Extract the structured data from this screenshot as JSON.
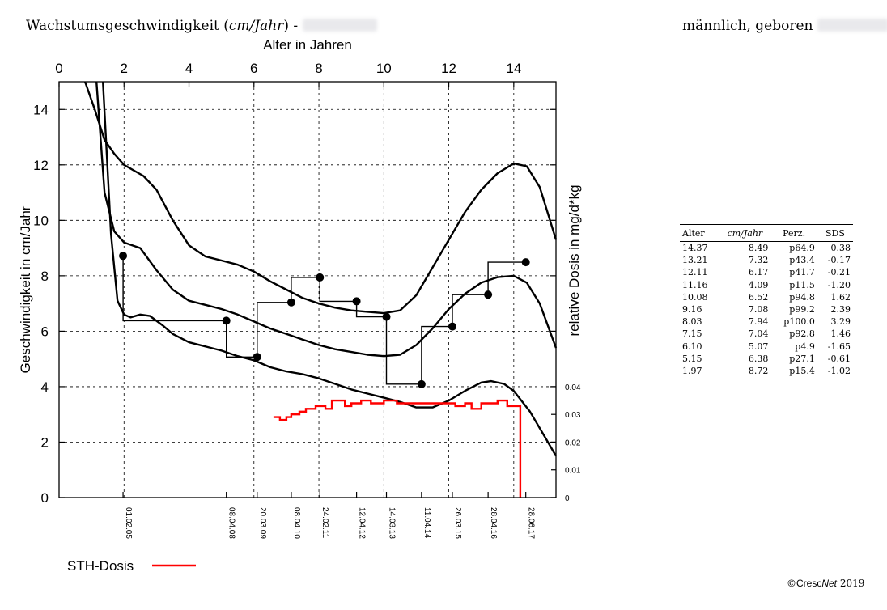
{
  "header": {
    "title_prefix": "Wachstumsgeschwindigkeit (",
    "title_unit": "cm/Jahr",
    "title_suffix": ") - ",
    "sex_born": "männlich, geboren"
  },
  "legend": {
    "label": "STH-Dosis",
    "color": "#ff0000"
  },
  "footer": {
    "copyright_symbol": "©",
    "brand": "Cresc",
    "brand_it": "Net",
    "year": "2019"
  },
  "table": {
    "columns": [
      "Alter",
      "cm/Jahr",
      "Perz.",
      "SDS"
    ],
    "rows": [
      [
        "14.37",
        "8.49",
        "p64.9",
        "0.38"
      ],
      [
        "13.21",
        "7.32",
        "p43.4",
        "-0.17"
      ],
      [
        "12.11",
        "6.17",
        "p41.7",
        "-0.21"
      ],
      [
        "11.16",
        "4.09",
        "p11.5",
        "-1.20"
      ],
      [
        "10.08",
        "6.52",
        "p94.8",
        "1.62"
      ],
      [
        "9.16",
        "7.08",
        "p99.2",
        "2.39"
      ],
      [
        "8.03",
        "7.94",
        "p100.0",
        "3.29"
      ],
      [
        "7.15",
        "7.04",
        "p92.8",
        "1.46"
      ],
      [
        "6.10",
        "5.07",
        "p4.9",
        "-1.65"
      ],
      [
        "5.15",
        "6.38",
        "p27.1",
        "-0.61"
      ],
      [
        "1.97",
        "8.72",
        "p15.4",
        "-1.02"
      ]
    ]
  },
  "chart_data": {
    "type": "line",
    "xlabel": "Alter in Jahren",
    "ylabel": "Geschwindigkeit in cm/Jahr",
    "y2label": "relative Dosis in mg/d*kg",
    "xlim": [
      0,
      15.3
    ],
    "ylim": [
      0,
      15
    ],
    "y2lim": [
      0,
      0.04
    ],
    "x_ticks": [
      0,
      2,
      4,
      6,
      8,
      10,
      12,
      14
    ],
    "y_ticks": [
      0,
      2,
      4,
      6,
      8,
      10,
      12,
      14
    ],
    "y2_ticks": [
      "0",
      "0.01",
      "0.02",
      "0.03",
      "0.04"
    ],
    "grid": true,
    "date_ticks": [
      {
        "x": 1.97,
        "label": "01.02.05"
      },
      {
        "x": 5.15,
        "label": "08.04.08"
      },
      {
        "x": 6.1,
        "label": "20.03.09"
      },
      {
        "x": 7.15,
        "label": "08.04.10"
      },
      {
        "x": 8.03,
        "label": "24.02.11"
      },
      {
        "x": 9.16,
        "label": "12.04.12"
      },
      {
        "x": 10.08,
        "label": "14.03.13"
      },
      {
        "x": 11.16,
        "label": "11.04.14"
      },
      {
        "x": 12.11,
        "label": "26.03.15"
      },
      {
        "x": 13.21,
        "label": "28.04.16"
      },
      {
        "x": 14.37,
        "label": "28.06.17"
      }
    ],
    "percentile_curves": [
      {
        "points": [
          [
            0.8,
            15
          ],
          [
            1.1,
            14
          ],
          [
            1.4,
            12.9
          ],
          [
            1.7,
            12.4
          ],
          [
            2.0,
            12.0
          ],
          [
            2.6,
            11.6
          ],
          [
            3.0,
            11.1
          ],
          [
            3.5,
            10.0
          ],
          [
            4.0,
            9.1
          ],
          [
            4.5,
            8.7
          ],
          [
            5.0,
            8.55
          ],
          [
            5.5,
            8.4
          ],
          [
            6.0,
            8.15
          ],
          [
            6.5,
            7.8
          ],
          [
            7.0,
            7.5
          ],
          [
            7.5,
            7.2
          ],
          [
            8.0,
            7.0
          ],
          [
            8.5,
            6.85
          ],
          [
            9.0,
            6.75
          ],
          [
            9.5,
            6.7
          ],
          [
            10.0,
            6.65
          ],
          [
            10.5,
            6.75
          ],
          [
            11.0,
            7.3
          ],
          [
            11.5,
            8.3
          ],
          [
            12.0,
            9.3
          ],
          [
            12.5,
            10.3
          ],
          [
            13.0,
            11.1
          ],
          [
            13.5,
            11.7
          ],
          [
            14.0,
            12.05
          ],
          [
            14.4,
            11.95
          ],
          [
            14.8,
            11.2
          ],
          [
            15.3,
            9.3
          ]
        ]
      },
      {
        "points": [
          [
            1.15,
            15
          ],
          [
            1.4,
            11.0
          ],
          [
            1.7,
            9.6
          ],
          [
            2.0,
            9.2
          ],
          [
            2.5,
            9.0
          ],
          [
            3.0,
            8.2
          ],
          [
            3.5,
            7.5
          ],
          [
            4.0,
            7.1
          ],
          [
            4.5,
            6.95
          ],
          [
            5.0,
            6.8
          ],
          [
            5.5,
            6.6
          ],
          [
            6.0,
            6.35
          ],
          [
            6.5,
            6.1
          ],
          [
            7.0,
            5.9
          ],
          [
            7.5,
            5.7
          ],
          [
            8.0,
            5.5
          ],
          [
            8.5,
            5.35
          ],
          [
            9.0,
            5.25
          ],
          [
            9.5,
            5.15
          ],
          [
            10.0,
            5.1
          ],
          [
            10.5,
            5.15
          ],
          [
            11.0,
            5.5
          ],
          [
            11.5,
            6.1
          ],
          [
            12.0,
            6.8
          ],
          [
            12.5,
            7.35
          ],
          [
            13.0,
            7.75
          ],
          [
            13.5,
            7.95
          ],
          [
            14.0,
            8.0
          ],
          [
            14.4,
            7.75
          ],
          [
            14.8,
            7.0
          ],
          [
            15.3,
            5.4
          ]
        ]
      },
      {
        "points": [
          [
            1.35,
            15
          ],
          [
            1.6,
            9.5
          ],
          [
            1.8,
            7.1
          ],
          [
            2.0,
            6.6
          ],
          [
            2.2,
            6.5
          ],
          [
            2.5,
            6.6
          ],
          [
            2.8,
            6.55
          ],
          [
            3.2,
            6.2
          ],
          [
            3.5,
            5.9
          ],
          [
            4.0,
            5.6
          ],
          [
            4.5,
            5.45
          ],
          [
            5.0,
            5.3
          ],
          [
            5.5,
            5.1
          ],
          [
            6.0,
            4.95
          ],
          [
            6.5,
            4.7
          ],
          [
            7.0,
            4.55
          ],
          [
            7.5,
            4.45
          ],
          [
            8.0,
            4.3
          ],
          [
            8.5,
            4.1
          ],
          [
            9.0,
            3.9
          ],
          [
            9.5,
            3.75
          ],
          [
            10.0,
            3.6
          ],
          [
            10.5,
            3.45
          ],
          [
            11.0,
            3.25
          ],
          [
            11.5,
            3.25
          ],
          [
            12.0,
            3.5
          ],
          [
            12.5,
            3.85
          ],
          [
            13.0,
            4.15
          ],
          [
            13.3,
            4.2
          ],
          [
            13.7,
            4.1
          ],
          [
            14.0,
            3.85
          ],
          [
            14.5,
            3.1
          ],
          [
            15.0,
            2.1
          ],
          [
            15.3,
            1.5
          ]
        ]
      }
    ],
    "measured_points": [
      [
        1.97,
        8.72
      ],
      [
        5.15,
        6.38
      ],
      [
        6.1,
        5.07
      ],
      [
        7.15,
        7.04
      ],
      [
        8.03,
        7.94
      ],
      [
        9.16,
        7.08
      ],
      [
        10.08,
        6.52
      ],
      [
        11.16,
        4.09
      ],
      [
        12.11,
        6.17
      ],
      [
        13.21,
        7.32
      ],
      [
        14.37,
        8.49
      ]
    ],
    "measured_steps": [
      {
        "from": 1.97,
        "to": 5.15,
        "y": 6.38
      },
      {
        "from": 5.15,
        "to": 6.1,
        "y": 5.07
      },
      {
        "from": 6.1,
        "to": 7.15,
        "y": 7.04
      },
      {
        "from": 7.15,
        "to": 8.03,
        "y": 7.94
      },
      {
        "from": 8.03,
        "to": 9.16,
        "y": 7.08
      },
      {
        "from": 9.16,
        "to": 10.08,
        "y": 6.52
      },
      {
        "from": 10.08,
        "to": 11.16,
        "y": 4.09
      },
      {
        "from": 11.16,
        "to": 12.11,
        "y": 6.17
      },
      {
        "from": 12.11,
        "to": 13.21,
        "y": 7.32
      },
      {
        "from": 13.21,
        "to": 14.37,
        "y": 8.49
      }
    ],
    "dose_series": {
      "name": "STH-Dosis",
      "axis": "y2",
      "points": [
        [
          6.6,
          0.029
        ],
        [
          6.8,
          0.029
        ],
        [
          6.8,
          0.028
        ],
        [
          7.0,
          0.028
        ],
        [
          7.0,
          0.029
        ],
        [
          7.15,
          0.029
        ],
        [
          7.15,
          0.03
        ],
        [
          7.4,
          0.03
        ],
        [
          7.4,
          0.031
        ],
        [
          7.6,
          0.031
        ],
        [
          7.6,
          0.032
        ],
        [
          7.9,
          0.032
        ],
        [
          7.9,
          0.033
        ],
        [
          8.2,
          0.033
        ],
        [
          8.2,
          0.032
        ],
        [
          8.4,
          0.032
        ],
        [
          8.4,
          0.035
        ],
        [
          8.8,
          0.035
        ],
        [
          8.8,
          0.033
        ],
        [
          9.0,
          0.033
        ],
        [
          9.0,
          0.034
        ],
        [
          9.3,
          0.034
        ],
        [
          9.3,
          0.035
        ],
        [
          9.6,
          0.035
        ],
        [
          9.6,
          0.034
        ],
        [
          10.0,
          0.034
        ],
        [
          10.0,
          0.035
        ],
        [
          10.4,
          0.035
        ],
        [
          10.4,
          0.034
        ],
        [
          10.7,
          0.034
        ],
        [
          10.7,
          0.034
        ],
        [
          12.2,
          0.034
        ],
        [
          12.2,
          0.033
        ],
        [
          12.5,
          0.033
        ],
        [
          12.5,
          0.034
        ],
        [
          12.7,
          0.034
        ],
        [
          12.7,
          0.032
        ],
        [
          13.0,
          0.032
        ],
        [
          13.0,
          0.034
        ],
        [
          13.5,
          0.034
        ],
        [
          13.5,
          0.035
        ],
        [
          13.8,
          0.035
        ],
        [
          13.8,
          0.033
        ],
        [
          14.2,
          0.033
        ],
        [
          14.2,
          0.0
        ]
      ]
    }
  }
}
